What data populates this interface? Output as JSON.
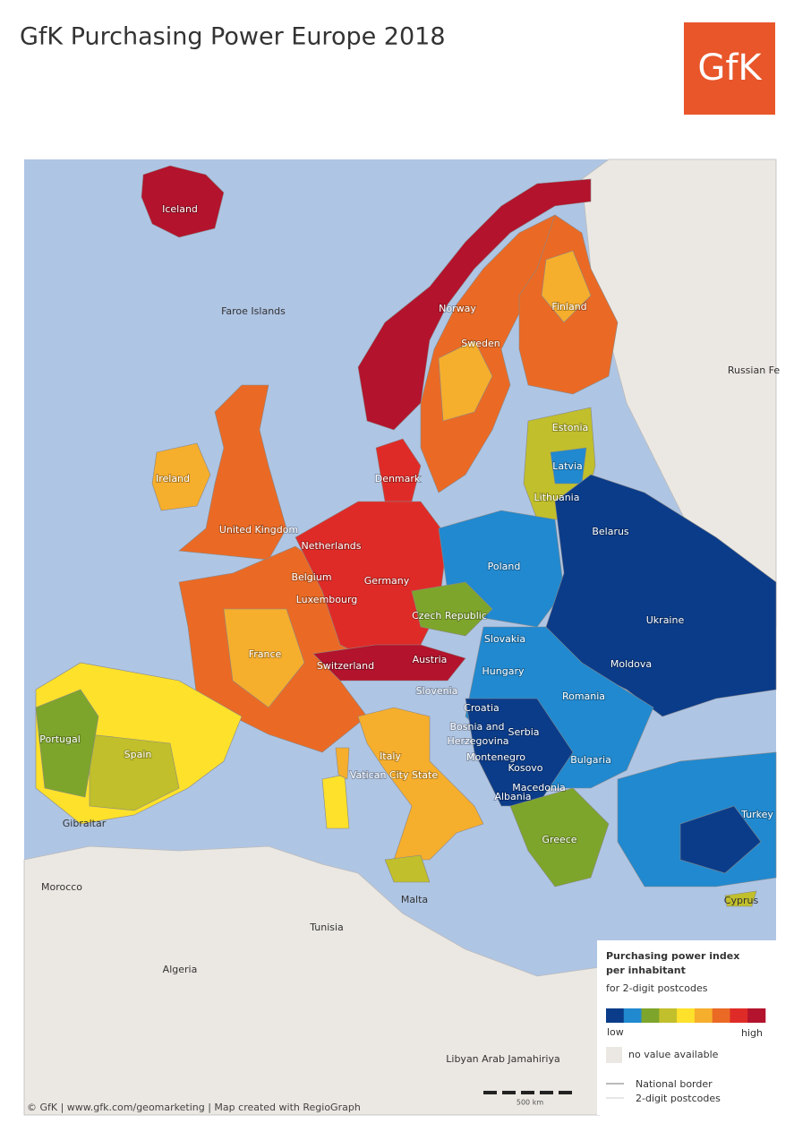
{
  "header": {
    "title": "GfK Purchasing Power Europe 2018",
    "logo": "GfK"
  },
  "map": {
    "labels": [
      "Iceland",
      "Faroe Islands",
      "Norway",
      "Finland",
      "Sweden",
      "Russian Fe",
      "Estonia",
      "Latvia",
      "Lithuania",
      "Denmark",
      "Ireland",
      "United Kingdom",
      "Netherlands",
      "Belarus",
      "Poland",
      "Belgium",
      "Germany",
      "Luxembourg",
      "Czech Republic",
      "Ukraine",
      "Slovakia",
      "France",
      "Switzerland",
      "Austria",
      "Moldova",
      "Hungary",
      "Slovenia",
      "Romania",
      "Croatia",
      "Portugal",
      "Bosnia and",
      "Herzegovina",
      "Serbia",
      "Spain",
      "Italy",
      "Montenegro",
      "Bulgaria",
      "Kosovo",
      "Vatican City State",
      "Macedonia",
      "Albania",
      "Turkey",
      "Gibraltar",
      "Greece",
      "Morocco",
      "Malta",
      "Cyprus",
      "Tunisia",
      "Algeria",
      "Libyan Arab Jamahiriya"
    ],
    "scale": "500 km"
  },
  "legend": {
    "title_line1": "Purchasing power index",
    "title_line2": "per inhabitant",
    "subtitle": "for 2-digit postcodes",
    "colors": [
      "#0b3c8a",
      "#2189cf",
      "#7ea52b",
      "#c1bf2b",
      "#fde12b",
      "#f6ae2d",
      "#ea6a25",
      "#df2b27",
      "#b3132c"
    ],
    "low": "low",
    "high": "high",
    "no_value": "no value available",
    "national_border": "National border",
    "postcodes": "2-digit postcodes"
  },
  "footer": "© GfK | www.gfk.com/geomarketing | Map created with RegioGraph"
}
